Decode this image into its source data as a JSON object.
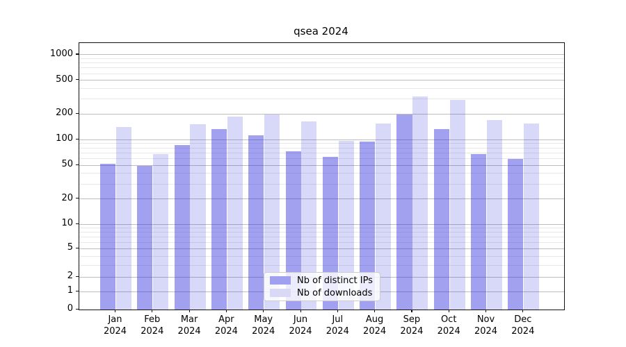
{
  "chart_data": {
    "type": "bar",
    "title": "qsea 2024",
    "scale": "asinh (log-like), linear near zero",
    "categories": [
      "Jan",
      "Feb",
      "Mar",
      "Apr",
      "May",
      "Jun",
      "Jul",
      "Aug",
      "Sep",
      "Oct",
      "Nov",
      "Dec"
    ],
    "year_label": "2024",
    "series": [
      {
        "name": "Nb of distinct IPs",
        "color": "#a0a0f0",
        "fill": "rgba(40,40,220,0.44)",
        "values": [
          52,
          49,
          87,
          133,
          113,
          73,
          63,
          95,
          198,
          134,
          68,
          59
        ]
      },
      {
        "name": "Nb of downloads",
        "color": "#d9d9f6",
        "fill": "rgba(40,40,220,0.18)",
        "values": [
          142,
          68,
          151,
          186,
          196,
          164,
          96,
          156,
          322,
          294,
          171,
          155
        ]
      }
    ],
    "yticks": [
      0,
      1,
      2,
      5,
      10,
      20,
      50,
      100,
      200,
      500,
      1000
    ],
    "minor_gridlines": [
      3,
      4,
      6,
      7,
      8,
      9,
      30,
      40,
      60,
      70,
      80,
      90,
      300,
      400,
      600,
      700,
      800,
      900
    ],
    "ylim": [
      0,
      1350
    ],
    "grid": true,
    "legend_position": "inside bottom-center"
  }
}
